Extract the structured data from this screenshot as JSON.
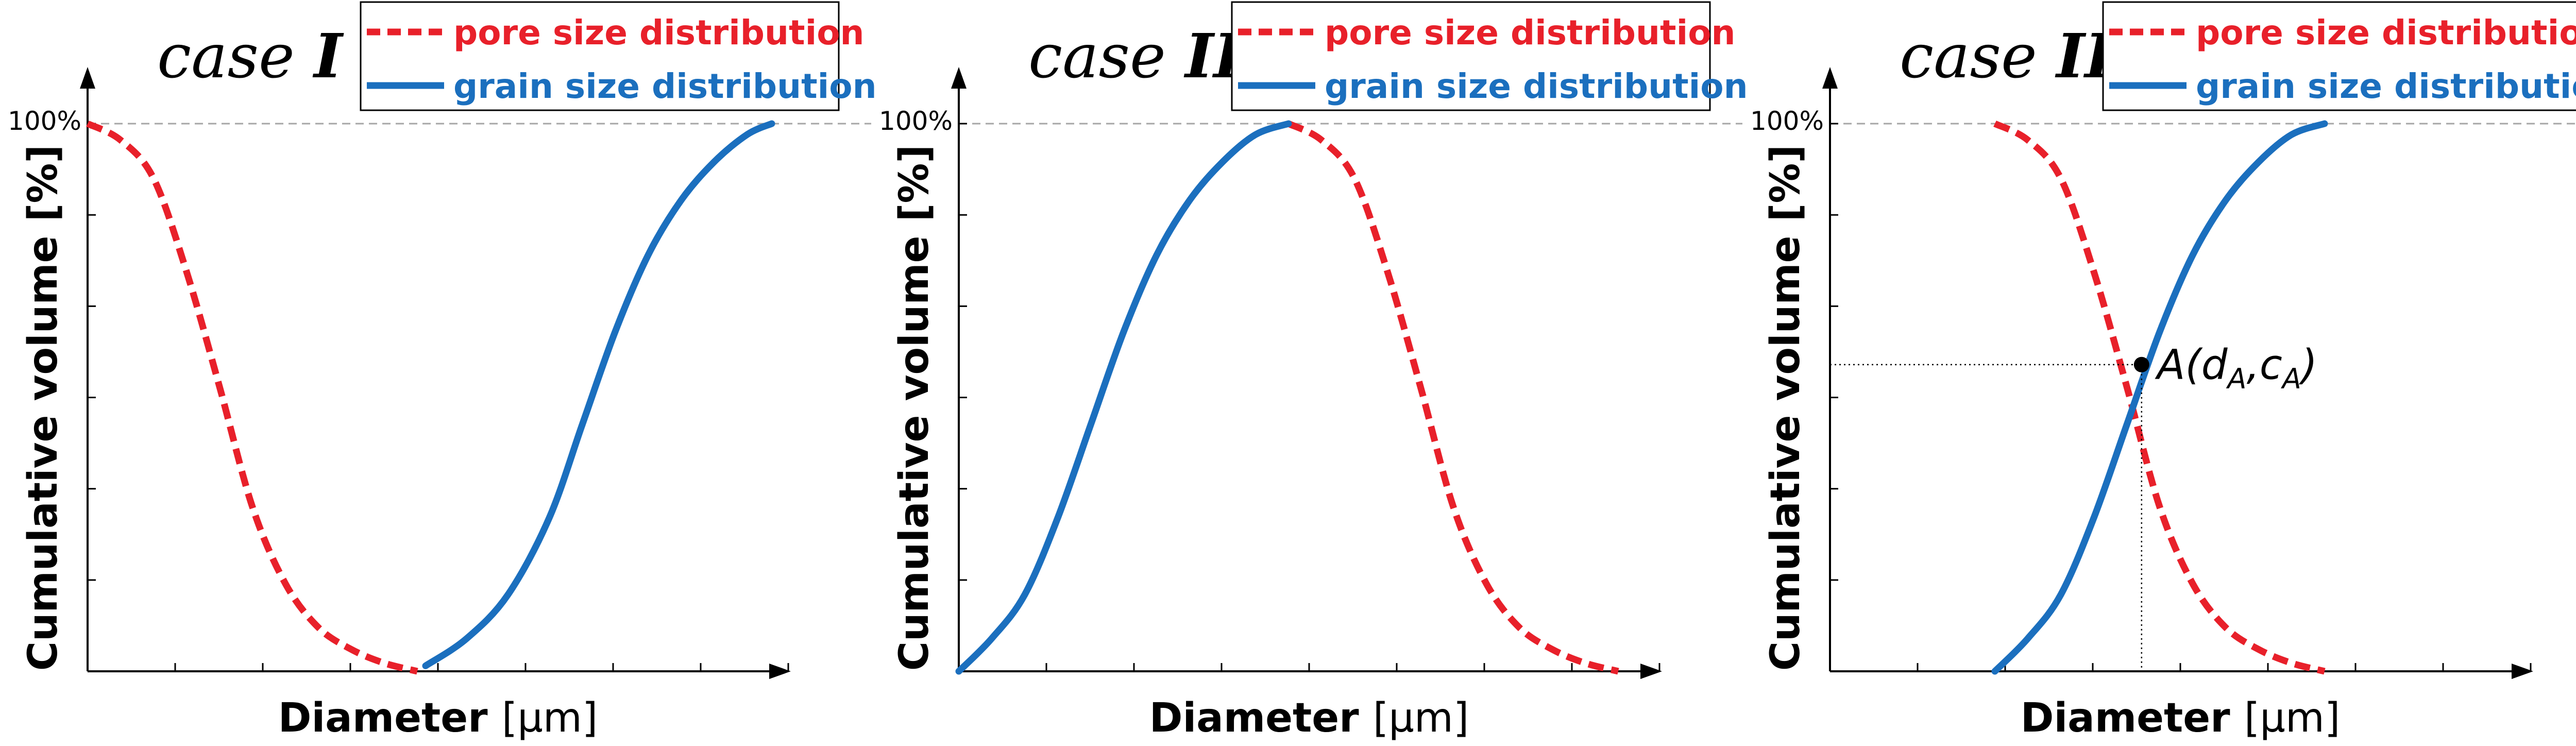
{
  "chart_data": [
    {
      "type": "line",
      "title": "case I",
      "title_prefix": "case",
      "title_numeral": "I",
      "xlabel": "Diameter",
      "xlabel_unit": "[μm]",
      "ylabel": "Cumulative volume [%]",
      "y_max_label": "100%",
      "ylim": [
        0,
        100
      ],
      "xlim": [
        0,
        8.5
      ],
      "x_ticks": 8,
      "y_ticks": 6,
      "legend": {
        "position": "top-right",
        "entries": [
          "pore size distribution",
          "grain size distribution"
        ]
      },
      "series": [
        {
          "name": "pore size distribution",
          "style": "dashed",
          "color": "#e8202a",
          "x": [
            0.0,
            0.4,
            0.8,
            1.2,
            1.6,
            2.0,
            2.4,
            2.8,
            3.2,
            3.6,
            4.0
          ],
          "y": [
            100,
            97,
            90,
            73,
            52,
            30,
            16,
            8,
            4,
            1.5,
            0
          ]
        },
        {
          "name": "grain size distribution",
          "style": "solid",
          "color": "#1b6fbe",
          "x": [
            4.1,
            4.6,
            5.1,
            5.6,
            6.0,
            6.4,
            6.8,
            7.2,
            7.6,
            8.0,
            8.3
          ],
          "y": [
            1,
            6,
            14,
            28,
            45,
            62,
            76,
            86,
            93,
            98,
            100
          ]
        }
      ]
    },
    {
      "type": "line",
      "title": "case II",
      "title_prefix": "case",
      "title_numeral": "II",
      "xlabel": "Diameter",
      "xlabel_unit": "[μm]",
      "ylabel": "Cumulative volume [%]",
      "y_max_label": "100%",
      "ylim": [
        0,
        100
      ],
      "xlim": [
        0,
        8.5
      ],
      "x_ticks": 8,
      "y_ticks": 6,
      "legend": {
        "position": "top-right",
        "entries": [
          "pore size distribution",
          "grain size distribution"
        ]
      },
      "series": [
        {
          "name": "pore size distribution",
          "style": "dashed",
          "color": "#e8202a",
          "x": [
            4.0,
            4.4,
            4.8,
            5.2,
            5.6,
            6.0,
            6.4,
            6.8,
            7.2,
            7.6,
            8.0
          ],
          "y": [
            100,
            97,
            90,
            73,
            52,
            30,
            16,
            8,
            4,
            1.5,
            0
          ]
        },
        {
          "name": "grain size distribution",
          "style": "solid",
          "color": "#1b6fbe",
          "x": [
            0.0,
            0.4,
            0.8,
            1.2,
            1.6,
            2.0,
            2.4,
            2.8,
            3.2,
            3.6,
            4.0
          ],
          "y": [
            0,
            6,
            14,
            28,
            45,
            62,
            76,
            86,
            93,
            98,
            100
          ]
        }
      ]
    },
    {
      "type": "line",
      "title": "case III",
      "title_prefix": "case",
      "title_numeral": "III",
      "xlabel": "Diameter",
      "xlabel_unit": "[μm]",
      "ylabel": "Cumulative volume [%]",
      "y_max_label": "100%",
      "ylim": [
        0,
        100
      ],
      "xlim": [
        0,
        8.5
      ],
      "x_ticks": 8,
      "y_ticks": 6,
      "legend": {
        "position": "top-right",
        "entries": [
          "pore size distribution",
          "grain size distribution"
        ]
      },
      "series": [
        {
          "name": "pore size distribution",
          "style": "dashed",
          "color": "#e8202a",
          "x": [
            2.0,
            2.4,
            2.8,
            3.2,
            3.6,
            4.0,
            4.4,
            4.8,
            5.2,
            5.6,
            6.0
          ],
          "y": [
            100,
            97,
            90,
            73,
            52,
            30,
            16,
            8,
            4,
            1.5,
            0
          ]
        },
        {
          "name": "grain size distribution",
          "style": "solid",
          "color": "#1b6fbe",
          "x": [
            2.0,
            2.4,
            2.8,
            3.2,
            3.6,
            4.0,
            4.4,
            4.8,
            5.2,
            5.6,
            6.0
          ],
          "y": [
            0,
            6,
            14,
            28,
            45,
            62,
            76,
            86,
            93,
            98,
            100
          ]
        }
      ],
      "annotation": {
        "label_prefix": "A(d",
        "label_sub_d": "A",
        "label_mid": ",c",
        "label_sub_c": "A",
        "label_suffix": ")",
        "x": 3.78,
        "y": 56
      }
    }
  ]
}
